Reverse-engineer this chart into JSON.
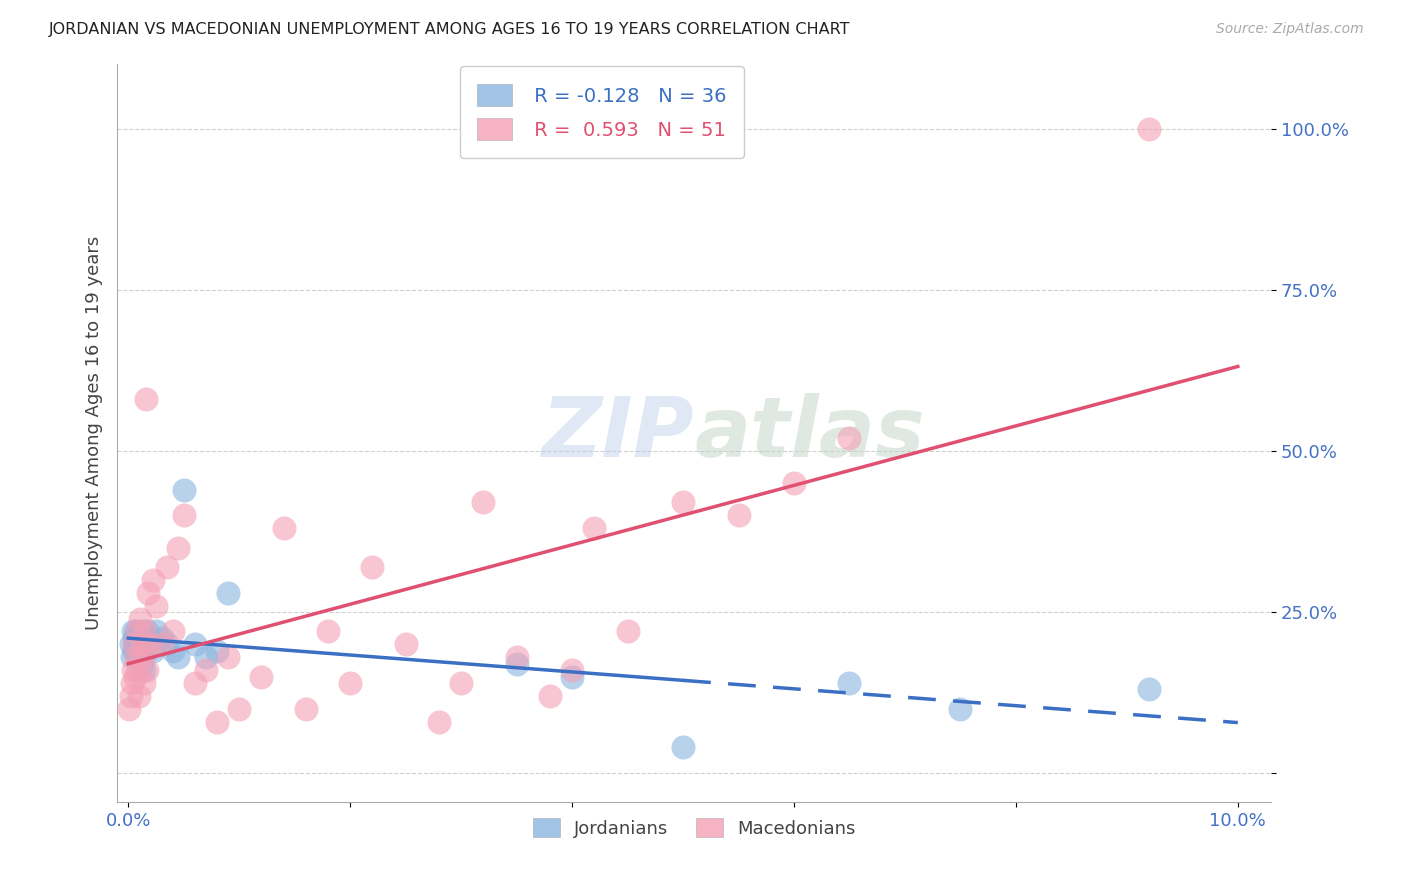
{
  "title": "JORDANIAN VS MACEDONIAN UNEMPLOYMENT AMONG AGES 16 TO 19 YEARS CORRELATION CHART",
  "source": "Source: ZipAtlas.com",
  "ylabel_label": "Unemployment Among Ages 16 to 19 years",
  "jordanian_color": "#89b4e0",
  "macedonian_color": "#f4a0b5",
  "jordan_line_color": "#3a6fc4",
  "maced_line_color": "#e05070",
  "jordan_R": -0.128,
  "jordan_N": 36,
  "maced_R": 0.593,
  "maced_N": 51,
  "background_color": "#ffffff",
  "jordanian_x": [
    0.0002,
    0.0003,
    0.0004,
    0.0005,
    0.0005,
    0.0006,
    0.0007,
    0.0008,
    0.0009,
    0.001,
    0.0011,
    0.0012,
    0.0013,
    0.0014,
    0.0015,
    0.0016,
    0.0017,
    0.0018,
    0.002,
    0.0022,
    0.0025,
    0.003,
    0.0035,
    0.004,
    0.0045,
    0.005,
    0.006,
    0.007,
    0.008,
    0.009,
    0.035,
    0.04,
    0.05,
    0.065,
    0.075,
    0.092
  ],
  "jordanian_y": [
    0.2,
    0.18,
    0.22,
    0.19,
    0.21,
    0.2,
    0.22,
    0.18,
    0.21,
    0.19,
    0.2,
    0.17,
    0.22,
    0.16,
    0.2,
    0.19,
    0.22,
    0.21,
    0.2,
    0.19,
    0.22,
    0.21,
    0.2,
    0.19,
    0.18,
    0.44,
    0.2,
    0.18,
    0.19,
    0.28,
    0.17,
    0.15,
    0.04,
    0.14,
    0.1,
    0.13
  ],
  "macedonian_x": [
    0.0001,
    0.0002,
    0.0003,
    0.0004,
    0.0005,
    0.0006,
    0.0007,
    0.0008,
    0.0009,
    0.001,
    0.0011,
    0.0012,
    0.0013,
    0.0014,
    0.0015,
    0.0016,
    0.0017,
    0.0018,
    0.002,
    0.0022,
    0.0025,
    0.003,
    0.0035,
    0.004,
    0.0045,
    0.005,
    0.006,
    0.007,
    0.008,
    0.009,
    0.01,
    0.012,
    0.014,
    0.016,
    0.018,
    0.02,
    0.022,
    0.025,
    0.028,
    0.03,
    0.032,
    0.035,
    0.038,
    0.04,
    0.042,
    0.045,
    0.05,
    0.055,
    0.06,
    0.065,
    0.092
  ],
  "macedonian_y": [
    0.1,
    0.12,
    0.14,
    0.16,
    0.2,
    0.15,
    0.18,
    0.22,
    0.16,
    0.12,
    0.24,
    0.18,
    0.2,
    0.14,
    0.22,
    0.58,
    0.16,
    0.28,
    0.2,
    0.3,
    0.26,
    0.2,
    0.32,
    0.22,
    0.35,
    0.4,
    0.14,
    0.16,
    0.08,
    0.18,
    0.1,
    0.15,
    0.38,
    0.1,
    0.22,
    0.14,
    0.32,
    0.2,
    0.08,
    0.14,
    0.42,
    0.18,
    0.12,
    0.16,
    0.38,
    0.22,
    0.42,
    0.4,
    0.45,
    0.52,
    1.0
  ],
  "xlim": [
    -0.001,
    0.103
  ],
  "ylim": [
    -0.045,
    1.1
  ],
  "x_ticks": [
    0.0,
    0.1
  ],
  "x_tick_labels_left": "0.0%",
  "x_tick_labels_right": "10.0%",
  "y_ticks": [
    0.25,
    0.5,
    0.75,
    1.0
  ],
  "y_tick_labels": [
    "25.0%",
    "50.0%",
    "75.0%",
    "100.0%"
  ]
}
